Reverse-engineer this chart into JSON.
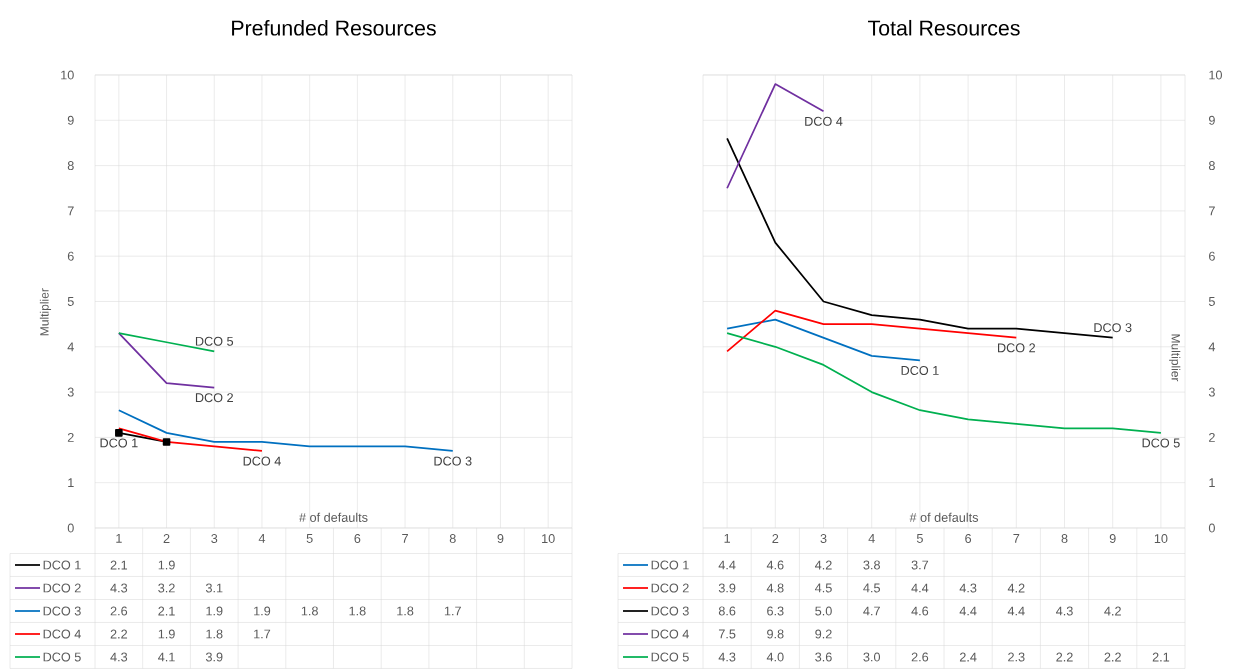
{
  "chart_data": [
    {
      "type": "line",
      "title": "Prefunded Resources",
      "xlabel": "# of defaults",
      "ylabel": "Multiplier",
      "categories": [
        "1",
        "2",
        "3",
        "4",
        "5",
        "6",
        "7",
        "8",
        "9",
        "10"
      ],
      "series": [
        {
          "name": "DCO 1",
          "color": "#000000",
          "marker": "square",
          "values": [
            2.1,
            1.9,
            null,
            null,
            null,
            null,
            null,
            null,
            null,
            null
          ]
        },
        {
          "name": "DCO 2",
          "color": "#7030a0",
          "values": [
            4.3,
            3.2,
            3.1,
            null,
            null,
            null,
            null,
            null,
            null,
            null
          ]
        },
        {
          "name": "DCO 3",
          "color": "#0070c0",
          "values": [
            2.6,
            2.1,
            1.9,
            1.9,
            1.8,
            1.8,
            1.8,
            1.7,
            null,
            null
          ]
        },
        {
          "name": "DCO 4",
          "color": "#ff0000",
          "values": [
            2.2,
            1.9,
            1.8,
            1.7,
            null,
            null,
            null,
            null,
            null,
            null
          ]
        },
        {
          "name": "DCO 5",
          "color": "#00b050",
          "values": [
            4.3,
            4.1,
            3.9,
            null,
            null,
            null,
            null,
            null,
            null,
            null
          ]
        }
      ],
      "ylim": [
        0,
        10
      ],
      "yticks": [
        0,
        1,
        2,
        3,
        4,
        5,
        6,
        7,
        8,
        9,
        10
      ],
      "grid": true,
      "legend": "bottom",
      "data_labels": true,
      "annotations": [
        {
          "text": "DCO 5",
          "x": "3",
          "y": 3.9
        },
        {
          "text": "DCO 2",
          "x": "3",
          "y": 3.1
        },
        {
          "text": "DCO 1",
          "x": "1",
          "y": 2.1
        },
        {
          "text": "DCO 4",
          "x": "4",
          "y": 1.7
        },
        {
          "text": "DCO 3",
          "x": "8",
          "y": 1.7
        }
      ]
    },
    {
      "type": "line",
      "title": "Total Resources",
      "xlabel": "# of defaults",
      "ylabel": "Multiplier",
      "categories": [
        "1",
        "2",
        "3",
        "4",
        "5",
        "6",
        "7",
        "8",
        "9",
        "10"
      ],
      "series": [
        {
          "name": "DCO 1",
          "color": "#0070c0",
          "values": [
            4.4,
            4.6,
            4.2,
            3.8,
            3.7,
            null,
            null,
            null,
            null,
            null
          ],
          "value_labels": [
            "4.4",
            "4.6",
            "4.2",
            "3.8",
            "3.7",
            null,
            null,
            null,
            null,
            null
          ]
        },
        {
          "name": "DCO 2",
          "color": "#ff0000",
          "values": [
            3.9,
            4.8,
            4.5,
            4.5,
            4.4,
            4.3,
            4.2,
            null,
            null,
            null
          ],
          "value_labels": [
            "3.9",
            "4.8",
            "4.5",
            "4.5",
            "4.4",
            "4.3",
            "4.2",
            null,
            null,
            null
          ]
        },
        {
          "name": "DCO 3",
          "color": "#000000",
          "values": [
            8.6,
            6.3,
            5.0,
            4.7,
            4.6,
            4.4,
            4.4,
            4.3,
            4.2,
            null
          ],
          "value_labels": [
            "8.6",
            "6.3",
            "5.0",
            "4.7",
            "4.6",
            "4.4",
            "4.4",
            "4.3",
            "4.2",
            null
          ]
        },
        {
          "name": "DCO 4",
          "color": "#7030a0",
          "values": [
            7.5,
            9.8,
            9.2,
            null,
            null,
            null,
            null,
            null,
            null,
            null
          ],
          "value_labels": [
            "7.5",
            "9.8",
            "9.2",
            null,
            null,
            null,
            null,
            null,
            null,
            null
          ]
        },
        {
          "name": "DCO 5",
          "color": "#00b050",
          "values": [
            4.3,
            4.0,
            3.6,
            3.0,
            2.6,
            2.4,
            2.3,
            2.2,
            2.2,
            2.1
          ],
          "value_labels": [
            "4.3",
            "4.0",
            "3.6",
            "3.0",
            "2.6",
            "2.4",
            "2.3",
            "2.2",
            "2.2",
            "2.1"
          ]
        }
      ],
      "ylim": [
        0,
        10
      ],
      "yticks": [
        0,
        1,
        2,
        3,
        4,
        5,
        6,
        7,
        8,
        9,
        10
      ],
      "grid": true,
      "legend": "bottom",
      "annotations": [
        {
          "text": "DCO 4",
          "x": "3",
          "y": 9.2
        },
        {
          "text": "DCO 3",
          "x": "9",
          "y": 4.2
        },
        {
          "text": "DCO 2",
          "x": "7",
          "y": 4.2
        },
        {
          "text": "DCO 1",
          "x": "5",
          "y": 3.7
        },
        {
          "text": "DCO 5",
          "x": "10",
          "y": 2.1
        }
      ]
    }
  ]
}
